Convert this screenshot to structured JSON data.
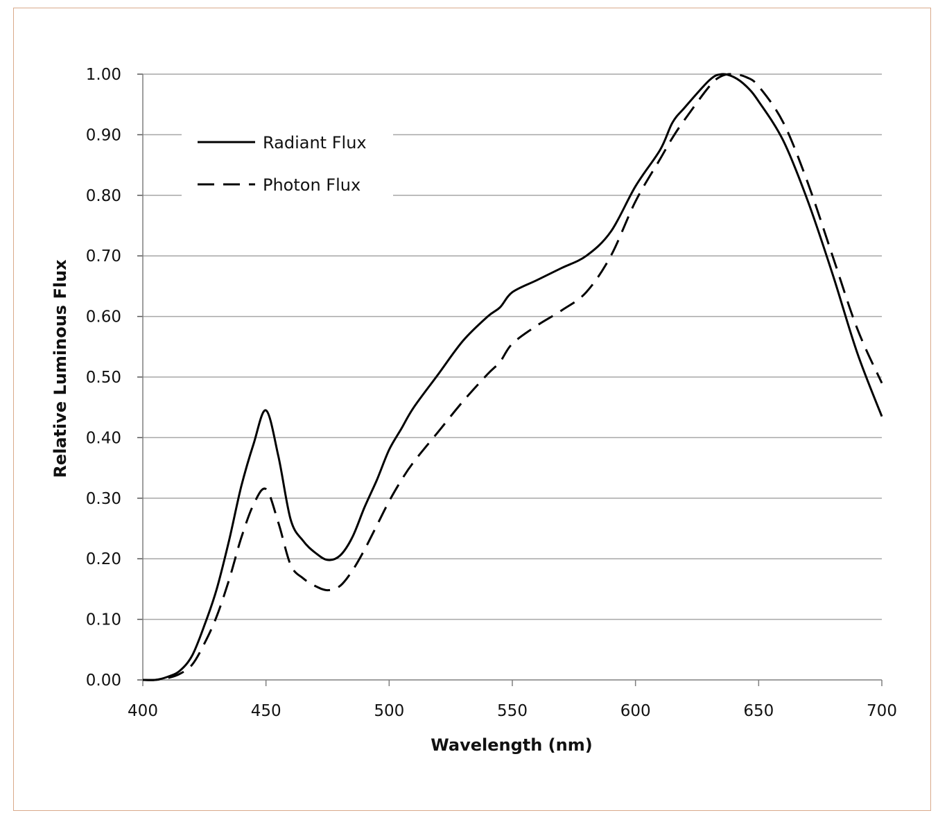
{
  "chart_data": {
    "type": "line",
    "title": "",
    "xlabel": "Wavelength (nm)",
    "ylabel": "Relative Luminous Flux",
    "xlim": [
      400,
      700
    ],
    "ylim": [
      0,
      1
    ],
    "xticks": [
      "400",
      "450",
      "500",
      "550",
      "600",
      "650",
      "700"
    ],
    "yticks": [
      "0.00",
      "0.10",
      "0.20",
      "0.30",
      "0.40",
      "0.50",
      "0.60",
      "0.70",
      "0.80",
      "0.90",
      "1.00"
    ],
    "grid": "horizontal",
    "legend_position": "top-left",
    "series": [
      {
        "name": "Radiant Flux",
        "style": "solid",
        "color": "#000000",
        "x": [
          400,
          405,
          410,
          415,
          420,
          425,
          430,
          435,
          440,
          445,
          450,
          455,
          460,
          465,
          470,
          475,
          480,
          485,
          490,
          495,
          500,
          505,
          510,
          520,
          530,
          540,
          545,
          550,
          560,
          570,
          580,
          590,
          600,
          610,
          615,
          620,
          630,
          635,
          640,
          645,
          650,
          660,
          670,
          680,
          690,
          700
        ],
        "values": [
          0.0,
          0.0,
          0.005,
          0.015,
          0.04,
          0.09,
          0.15,
          0.23,
          0.32,
          0.39,
          0.445,
          0.37,
          0.265,
          0.23,
          0.21,
          0.198,
          0.205,
          0.235,
          0.285,
          0.33,
          0.38,
          0.415,
          0.45,
          0.505,
          0.56,
          0.6,
          0.615,
          0.64,
          0.66,
          0.68,
          0.7,
          0.74,
          0.815,
          0.875,
          0.92,
          0.945,
          0.99,
          1.0,
          0.995,
          0.98,
          0.955,
          0.89,
          0.79,
          0.67,
          0.54,
          0.435
        ]
      },
      {
        "name": "Photon Flux",
        "style": "dashed",
        "color": "#000000",
        "x": [
          400,
          405,
          410,
          415,
          420,
          425,
          430,
          435,
          440,
          445,
          450,
          455,
          460,
          465,
          470,
          475,
          480,
          485,
          490,
          495,
          500,
          505,
          510,
          520,
          530,
          540,
          545,
          550,
          560,
          570,
          580,
          590,
          600,
          610,
          615,
          620,
          630,
          635,
          640,
          645,
          650,
          660,
          670,
          680,
          690,
          700
        ],
        "values": [
          0.0,
          0.0,
          0.003,
          0.01,
          0.025,
          0.06,
          0.105,
          0.165,
          0.235,
          0.29,
          0.315,
          0.26,
          0.19,
          0.168,
          0.155,
          0.148,
          0.155,
          0.18,
          0.215,
          0.255,
          0.295,
          0.33,
          0.36,
          0.41,
          0.46,
          0.505,
          0.525,
          0.555,
          0.585,
          0.61,
          0.64,
          0.7,
          0.79,
          0.86,
          0.895,
          0.925,
          0.98,
          0.997,
          1.0,
          0.995,
          0.98,
          0.92,
          0.82,
          0.7,
          0.58,
          0.49
        ]
      }
    ]
  }
}
